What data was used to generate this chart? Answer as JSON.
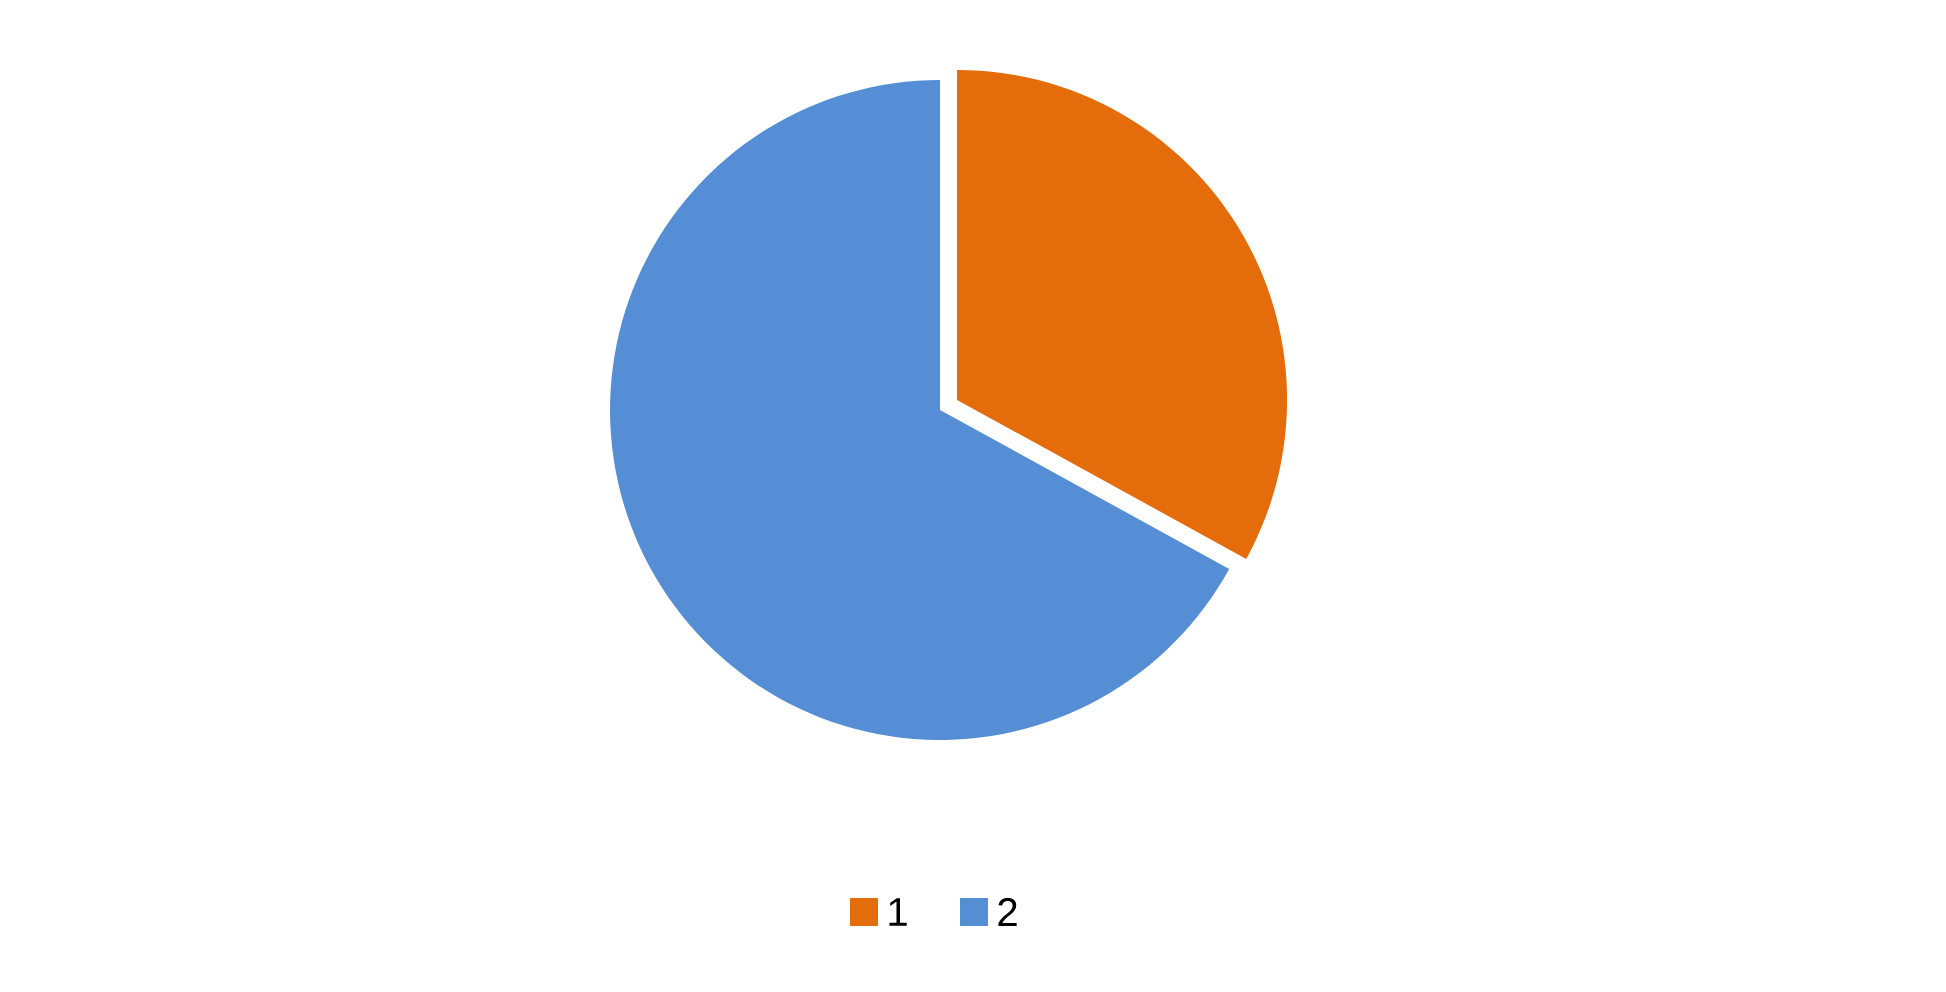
{
  "chart_data": {
    "type": "pie",
    "categories": [
      "1",
      "2"
    ],
    "values": [
      33,
      67
    ],
    "colors": [
      "#e46c0a",
      "#558ed5"
    ],
    "legend": "bottom"
  }
}
